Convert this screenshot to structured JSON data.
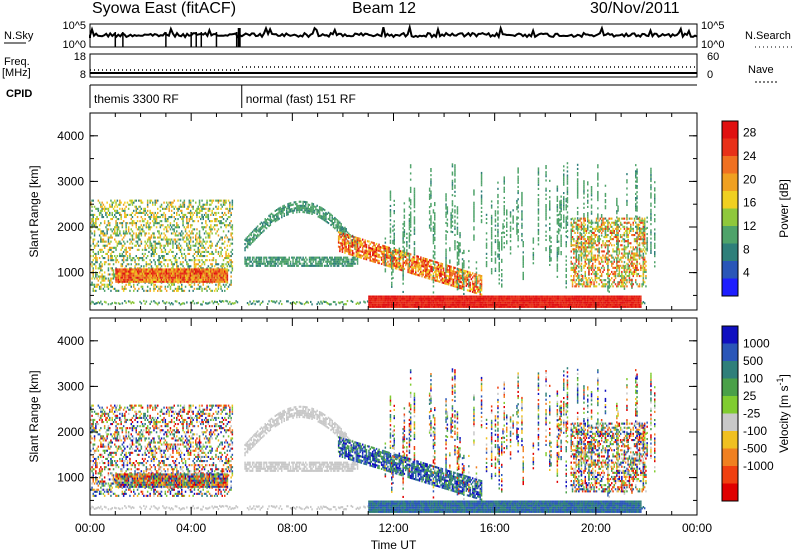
{
  "header": {
    "station": "Syowa East (fitACF)",
    "beam": "Beam 12",
    "date": "30/Nov/2011"
  },
  "aux_labels": {
    "nsky": "N.Sky",
    "nsearch": "N.Search",
    "freq": "Freq.",
    "freq_unit": "[MHz]",
    "nave": "Nave",
    "cpid": "CPID",
    "nsky_ticks": [
      "10^5",
      "10^0"
    ],
    "nsearch_ticks": [
      "10^5",
      "10^0"
    ],
    "freq_ticks": [
      "18",
      "8"
    ],
    "nave_ticks": [
      "60",
      "0"
    ]
  },
  "cpid_segments": [
    {
      "label": "themis 3300 RF",
      "start_hour": 0
    },
    {
      "label": "normal (fast) 151 RF",
      "start_hour": 6
    }
  ],
  "chart_data": [
    {
      "type": "heatmap",
      "panel": "power",
      "xlabel": "Time UT",
      "ylabel": "Slant Range [km]",
      "x_ticks": [
        "00:00",
        "04:00",
        "08:00",
        "12:00",
        "16:00",
        "20:00",
        "00:00"
      ],
      "xlim_hours": [
        0,
        24
      ],
      "ylim": [
        180,
        4500
      ],
      "y_ticks": [
        1000,
        2000,
        3000,
        4000
      ],
      "colorbar": {
        "label": "Power [dB]",
        "ticks": [
          4,
          8,
          12,
          16,
          20,
          24,
          28
        ],
        "range": [
          0,
          30
        ],
        "colors": [
          "#1e1eff",
          "#2a56b8",
          "#2f7f7a",
          "#4fa36a",
          "#8fc83c",
          "#f0d020",
          "#f0a020",
          "#f07020",
          "#e83018",
          "#e01010"
        ]
      }
    },
    {
      "type": "heatmap",
      "panel": "velocity",
      "xlabel": "Time UT",
      "ylabel": "Slant Range [km]",
      "x_ticks": [
        "00:00",
        "04:00",
        "08:00",
        "12:00",
        "16:00",
        "20:00",
        "00:00"
      ],
      "xlim_hours": [
        0,
        24
      ],
      "ylim": [
        180,
        4500
      ],
      "y_ticks": [
        1000,
        2000,
        3000,
        4000
      ],
      "colorbar": {
        "label": "Velocity [m s^-1]",
        "ticks": [
          "1000",
          "500",
          "100",
          "25",
          "-25",
          "-100",
          "-500",
          "-1000"
        ],
        "colors": [
          "#1010c0",
          "#2a56b8",
          "#2f7f7a",
          "#4aa048",
          "#80cc30",
          "#c8c8c8",
          "#f0c020",
          "#f08020",
          "#f04010",
          "#e00000"
        ]
      }
    }
  ],
  "colors": {
    "frame": "#000000",
    "ground_scatter_power": "#e02818",
    "ground_scatter_velocity": "#8a8a8a"
  }
}
